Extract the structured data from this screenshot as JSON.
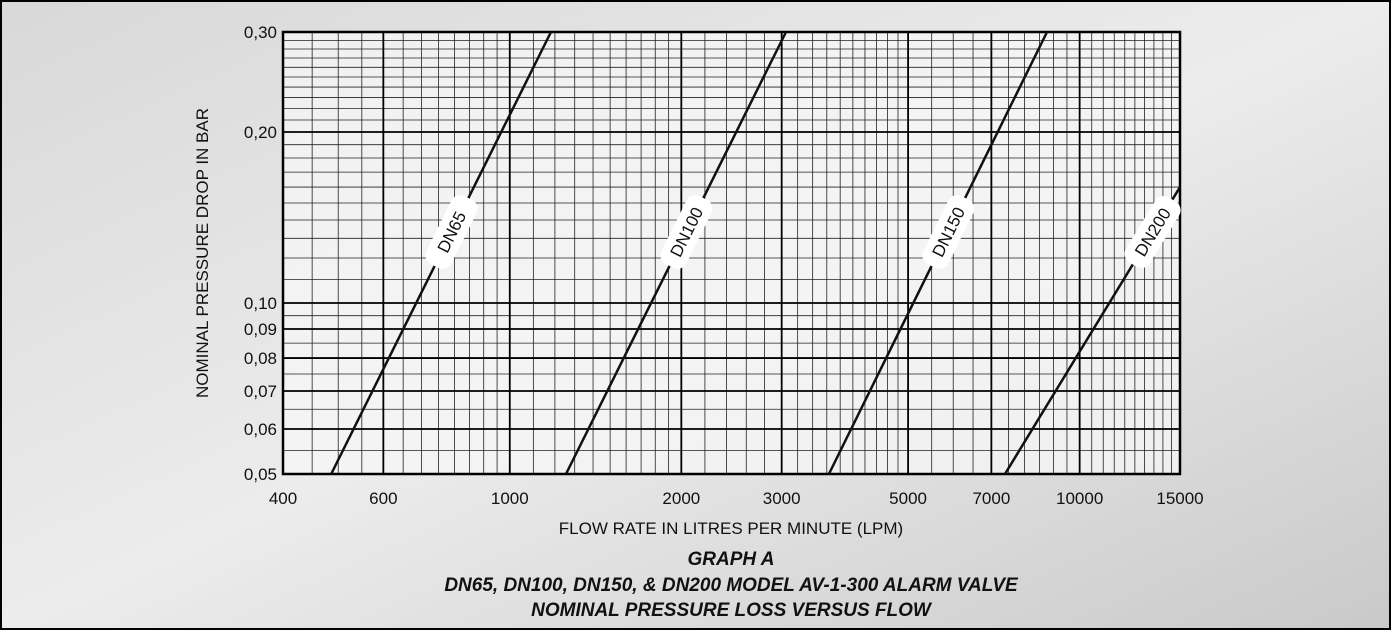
{
  "chart_data": {
    "type": "line",
    "log_x": true,
    "log_y": true,
    "grid": true,
    "xlabel": "FLOW RATE IN LITRES PER MINUTE (LPM)",
    "ylabel": "NOMINAL PRESSURE DROP IN BAR",
    "title": "GRAPH A",
    "subtitle": [
      "DN65, DN100, DN150, & DN200 MODEL AV-1-300 ALARM VALVE",
      "NOMINAL PRESSURE LOSS VERSUS FLOW"
    ],
    "xlim": [
      400,
      15000
    ],
    "ylim": [
      0.05,
      0.3
    ],
    "xticks": [
      400,
      600,
      1000,
      2000,
      3000,
      5000,
      7000,
      10000,
      15000
    ],
    "yticks": [
      {
        "value": 0.05,
        "label": "0,05"
      },
      {
        "value": 0.06,
        "label": "0,06"
      },
      {
        "value": 0.07,
        "label": "0,07"
      },
      {
        "value": 0.08,
        "label": "0,08"
      },
      {
        "value": 0.09,
        "label": "0,09"
      },
      {
        "value": 0.1,
        "label": "0,10"
      },
      {
        "value": 0.2,
        "label": "0,20"
      },
      {
        "value": 0.3,
        "label": "0,30"
      }
    ],
    "x_grid": [
      450,
      500,
      550,
      650,
      700,
      750,
      800,
      850,
      900,
      950,
      1100,
      1200,
      1300,
      1400,
      1500,
      1600,
      1700,
      1800,
      1900,
      2200,
      2400,
      2600,
      2800,
      3200,
      3400,
      3600,
      3800,
      4000,
      4200,
      4400,
      4600,
      4800,
      5500,
      6000,
      6500,
      7500,
      8000,
      8500,
      9000,
      9500,
      10500,
      11000,
      11500,
      12000,
      12500,
      13000,
      13500,
      14000,
      14500
    ],
    "y_grid": [
      0.055,
      0.065,
      0.075,
      0.085,
      0.095,
      0.11,
      0.12,
      0.13,
      0.14,
      0.15,
      0.16,
      0.17,
      0.18,
      0.19,
      0.21,
      0.22,
      0.23,
      0.24,
      0.25,
      0.26,
      0.27,
      0.28,
      0.29
    ],
    "series": [
      {
        "name": "DN65",
        "color": "#111111",
        "x": [
          486,
          1181
        ],
        "values": [
          0.05,
          0.3
        ]
      },
      {
        "name": "DN100",
        "color": "#111111",
        "x": [
          1255,
          3053
        ],
        "values": [
          0.05,
          0.3
        ]
      },
      {
        "name": "DN150",
        "color": "#111111",
        "x": [
          3631,
          8765
        ],
        "values": [
          0.05,
          0.3
        ]
      },
      {
        "name": "DN200",
        "color": "#111111",
        "x": [
          7396,
          15000
        ],
        "values": [
          0.05,
          0.16
        ]
      }
    ]
  }
}
